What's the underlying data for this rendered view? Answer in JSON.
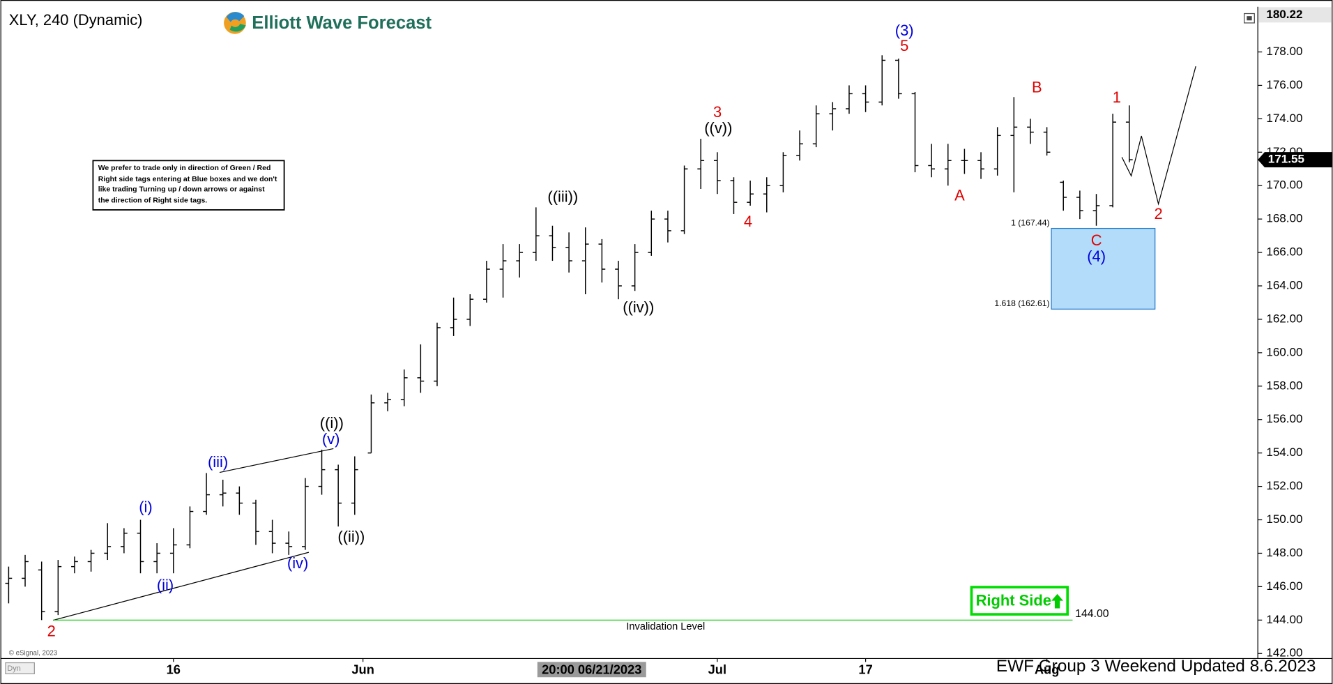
{
  "chart_data": {
    "type": "ohlc",
    "title": "XLY, 240 (Dynamic)",
    "color": "#000000",
    "x": [
      0,
      1,
      2,
      3,
      4,
      5,
      6,
      7,
      8,
      9,
      10,
      11,
      12,
      13,
      14,
      15,
      16,
      17,
      18,
      19,
      20,
      21,
      22,
      23,
      24,
      25,
      26,
      27,
      28,
      29,
      30,
      31,
      32,
      33,
      34,
      35,
      36,
      37,
      38,
      39,
      40,
      41,
      42,
      43,
      44,
      45,
      46,
      47,
      48,
      49,
      50,
      51,
      52,
      53,
      54,
      55,
      56,
      57,
      58,
      59,
      60,
      61,
      62,
      63,
      64,
      65,
      66,
      67,
      68
    ],
    "open": [
      146.2,
      146.5,
      147,
      144.5,
      147.2,
      147.5,
      148,
      148.4,
      149.2,
      147.5,
      148,
      148.5,
      150.5,
      151.5,
      151.6,
      151,
      149.3,
      148.6,
      148.4,
      152,
      153,
      151,
      154,
      157,
      157.2,
      158.5,
      158.3,
      161.5,
      162,
      163.2,
      165,
      165.5,
      166,
      167,
      166.3,
      165.5,
      166.5,
      165,
      164,
      166,
      168,
      167.3,
      171,
      171.5,
      170.3,
      169,
      169.5,
      170,
      171.8,
      172.5,
      174.3,
      174.6,
      175.5,
      175,
      177.5,
      175.5,
      171.2,
      171,
      171.5,
      171.5,
      171,
      173,
      173.5,
      173.2,
      170.2,
      169.3,
      168.5,
      168.8,
      173.8
    ],
    "high": [
      147.2,
      147.9,
      147.5,
      147.6,
      147.8,
      148.2,
      149.8,
      149.5,
      150,
      148.6,
      149.5,
      150.8,
      152.8,
      152.4,
      152,
      151.2,
      150,
      149.3,
      152.5,
      154.2,
      153.3,
      153.8,
      157.5,
      157.6,
      159,
      160.5,
      161.8,
      163.3,
      163.5,
      165.5,
      166.5,
      166.5,
      168.7,
      167.6,
      167.2,
      167.5,
      166.8,
      165.5,
      166.5,
      168.5,
      168.5,
      171.2,
      172.8,
      172,
      170.5,
      170.3,
      170.5,
      172,
      173.3,
      174.8,
      175,
      176,
      176,
      177.8,
      177.6,
      175.6,
      172.5,
      172.5,
      172.2,
      172,
      173.5,
      175.3,
      174,
      173.5,
      170.3,
      169.7,
      169.5,
      174.3,
      174.8
    ],
    "low": [
      145,
      146,
      144,
      144.3,
      146.8,
      146.9,
      147.6,
      148,
      146.8,
      146.8,
      146.8,
      148.3,
      150.3,
      150.8,
      150.3,
      148.5,
      148,
      147.9,
      148.2,
      151.5,
      149.6,
      150.3,
      154,
      156.5,
      156.8,
      157.6,
      158,
      161,
      161.6,
      163,
      163.3,
      164.5,
      165.5,
      165.5,
      164.8,
      163.5,
      164.2,
      163.2,
      163.7,
      165.8,
      166.6,
      167.1,
      169.8,
      169.5,
      168.3,
      168.8,
      168.4,
      169.6,
      171.5,
      172.3,
      173.3,
      174.3,
      174.4,
      174.8,
      175.2,
      170.8,
      170.5,
      170,
      170.7,
      170.4,
      170.6,
      169.6,
      172.5,
      171.8,
      168.5,
      168,
      167.6,
      168.7,
      171.4
    ],
    "close": [
      146.5,
      147.5,
      144.5,
      147.2,
      147.5,
      148,
      148.4,
      149.2,
      147.5,
      148,
      148.5,
      150.5,
      151.5,
      151.6,
      151,
      149.3,
      148.6,
      148.4,
      152,
      153,
      151,
      153,
      157,
      157.2,
      158.5,
      158.3,
      161.5,
      162,
      163.2,
      165,
      165.5,
      166,
      167,
      166.3,
      165.5,
      166.5,
      165,
      164,
      166,
      168,
      167.3,
      171,
      171.5,
      170.3,
      169,
      169.5,
      170,
      171.8,
      172.5,
      174.3,
      174.6,
      175.5,
      175,
      177.5,
      175.5,
      171.2,
      171,
      171.5,
      171.5,
      171,
      173,
      173.5,
      173.2,
      172,
      169.3,
      168.5,
      168.8,
      173.8,
      171.55
    ],
    "xlim": [
      -0.5,
      75.8
    ],
    "xticks": [
      {
        "value": 10,
        "label": "16"
      },
      {
        "value": 21.5,
        "label": "Jun"
      },
      {
        "value": 43,
        "label": "Jul"
      },
      {
        "value": 52,
        "label": "17"
      },
      {
        "value": 63,
        "label": "Aug"
      }
    ],
    "ylim": [
      141.7,
      180.6
    ],
    "yticks": [
      {
        "value": 142,
        "label": "142.00"
      },
      {
        "value": 144,
        "label": "144.00"
      },
      {
        "value": 146,
        "label": "146.00"
      },
      {
        "value": 148,
        "label": "148.00"
      },
      {
        "value": 150,
        "label": "150.00"
      },
      {
        "value": 152,
        "label": "152.00"
      },
      {
        "value": 154,
        "label": "154.00"
      },
      {
        "value": 156,
        "label": "156.00"
      },
      {
        "value": 158,
        "label": "158.00"
      },
      {
        "value": 160,
        "label": "160.00"
      },
      {
        "value": 162,
        "label": "162.00"
      },
      {
        "value": 164,
        "label": "164.00"
      },
      {
        "value": 166,
        "label": "166.00"
      },
      {
        "value": 168,
        "label": "168.00"
      },
      {
        "value": 170,
        "label": "170.00"
      },
      {
        "value": 172,
        "label": "172.00"
      },
      {
        "value": 174,
        "label": "174.00"
      },
      {
        "value": 176,
        "label": "176.00"
      },
      {
        "value": 178,
        "label": "178.00"
      }
    ],
    "top_tag": 180.22,
    "last_price": 171.55,
    "invalidation": {
      "value": 144,
      "label": "144.00",
      "text": "Invalidation Level",
      "color": "#00cc00"
    },
    "target_box": {
      "top": 167.44,
      "bottom": 162.61,
      "top_label": "1 (167.44)",
      "bottom_label": "1.618 (162.61)",
      "color": "#b3dcfa"
    },
    "crosshair_label": "20:00 06/21/2023",
    "wave_labels": [
      {
        "text": "2",
        "color": "#e00000"
      },
      {
        "text": "(i)",
        "color": "#0000dd"
      },
      {
        "text": "(ii)",
        "color": "#0000dd"
      },
      {
        "text": "(iii)",
        "color": "#0000dd"
      },
      {
        "text": "(iv)",
        "color": "#0000dd"
      },
      {
        "text": "(v)",
        "color": "#0000dd"
      },
      {
        "text": "((i))",
        "color": "#000000"
      },
      {
        "text": "((ii))",
        "color": "#000000"
      },
      {
        "text": "((iii))",
        "color": "#000000"
      },
      {
        "text": "((iv))",
        "color": "#000000"
      },
      {
        "text": "((v))",
        "color": "#000000"
      },
      {
        "text": "3",
        "color": "#e00000"
      },
      {
        "text": "4",
        "color": "#e00000"
      },
      {
        "text": "(3)",
        "color": "#0000dd"
      },
      {
        "text": "5",
        "color": "#e00000"
      },
      {
        "text": "A",
        "color": "#e00000"
      },
      {
        "text": "B",
        "color": "#e00000"
      },
      {
        "text": "C",
        "color": "#e00000"
      },
      {
        "text": "(4)",
        "color": "#0000dd"
      },
      {
        "text": "1",
        "color": "#e00000"
      },
      {
        "text": "2",
        "color": "#e00000"
      }
    ]
  },
  "header": {
    "logo": "Elliott Wave Forecast"
  },
  "note": [
    "We prefer to trade only in direction of Green / Red",
    "Right side tags entering at Blue boxes and we don't",
    "like trading Turning up / down arrows or against",
    "the direction of Right side tags."
  ],
  "right_side_tag": "Right Side",
  "footer": "EWF Group 3 Weekend Updated 8.6.2023",
  "copyright": "© eSignal, 2023",
  "dyn": "Dyn"
}
